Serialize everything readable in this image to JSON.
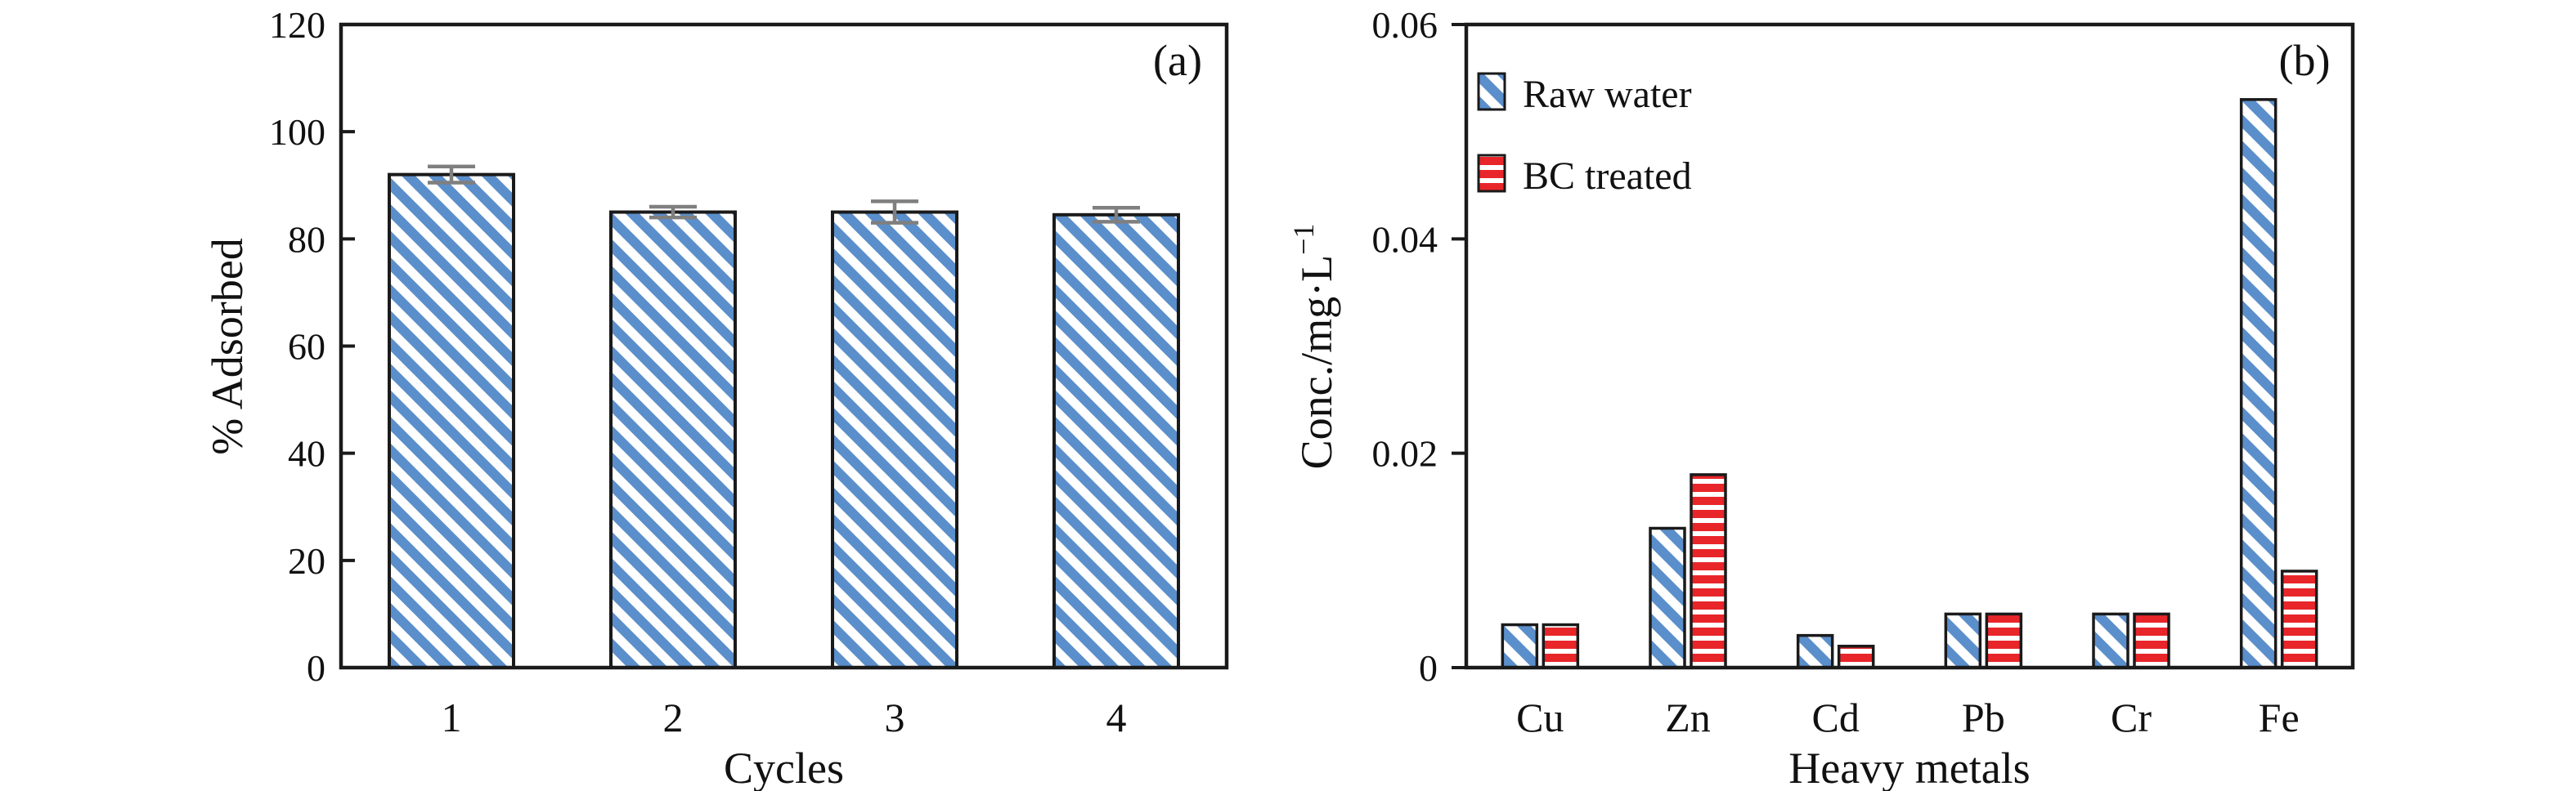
{
  "styles": {
    "background": "#ffffff",
    "axis_color": "#1a1a1a",
    "bar_edge_color": "#1a1a1a",
    "raw_water_blue": "#5b8fcb",
    "bc_treated_red": "#e8262a",
    "error_bar_gray": "#7f7f7f",
    "text_color": "#111111"
  },
  "chart_data": [
    {
      "id": "a",
      "type": "bar",
      "panel_label": "(a)",
      "categories": [
        "1",
        "2",
        "3",
        "4"
      ],
      "values": [
        92,
        85,
        85,
        84.5
      ],
      "error_bars": [
        1.5,
        1.0,
        2.0,
        1.3
      ],
      "xlabel": "Cycles",
      "ylabel": "% Adsorbed",
      "ylim": [
        0,
        120
      ],
      "yticks": [
        0,
        20,
        40,
        60,
        80,
        100,
        120
      ],
      "ytick_labels": [
        "0",
        "20",
        "40",
        "60",
        "80",
        "100",
        "120"
      ],
      "hatch": "diagonal",
      "bar_color": "#5b8fcb",
      "grid": false,
      "tick_direction": "in",
      "legend": null
    },
    {
      "id": "b",
      "type": "grouped-bar",
      "panel_label": "(b)",
      "categories": [
        "Cu",
        "Zn",
        "Cd",
        "Pb",
        "Cr",
        "Fe"
      ],
      "series": [
        {
          "name": "Raw water",
          "values": [
            0.004,
            0.013,
            0.003,
            0.005,
            0.005,
            0.053
          ],
          "hatch": "diagonal",
          "color": "#5b8fcb"
        },
        {
          "name": "BC treated",
          "values": [
            0.004,
            0.018,
            0.002,
            0.005,
            0.005,
            0.009
          ],
          "hatch": "horizontal",
          "color": "#e8262a"
        }
      ],
      "xlabel": "Heavy metals",
      "ylabel": "Conc./mg·L⁻¹",
      "ylabel_base": "Conc./mg·L",
      "ylabel_superscript": "−1",
      "ylim": [
        0,
        0.06
      ],
      "yticks": [
        0,
        0.02,
        0.04,
        0.06
      ],
      "ytick_labels": [
        "0",
        "0.02",
        "0.04",
        "0.06"
      ],
      "grid": false,
      "tick_direction": "out",
      "legend": {
        "position": "upper-left",
        "entries": [
          "Raw water",
          "BC treated"
        ]
      }
    }
  ]
}
